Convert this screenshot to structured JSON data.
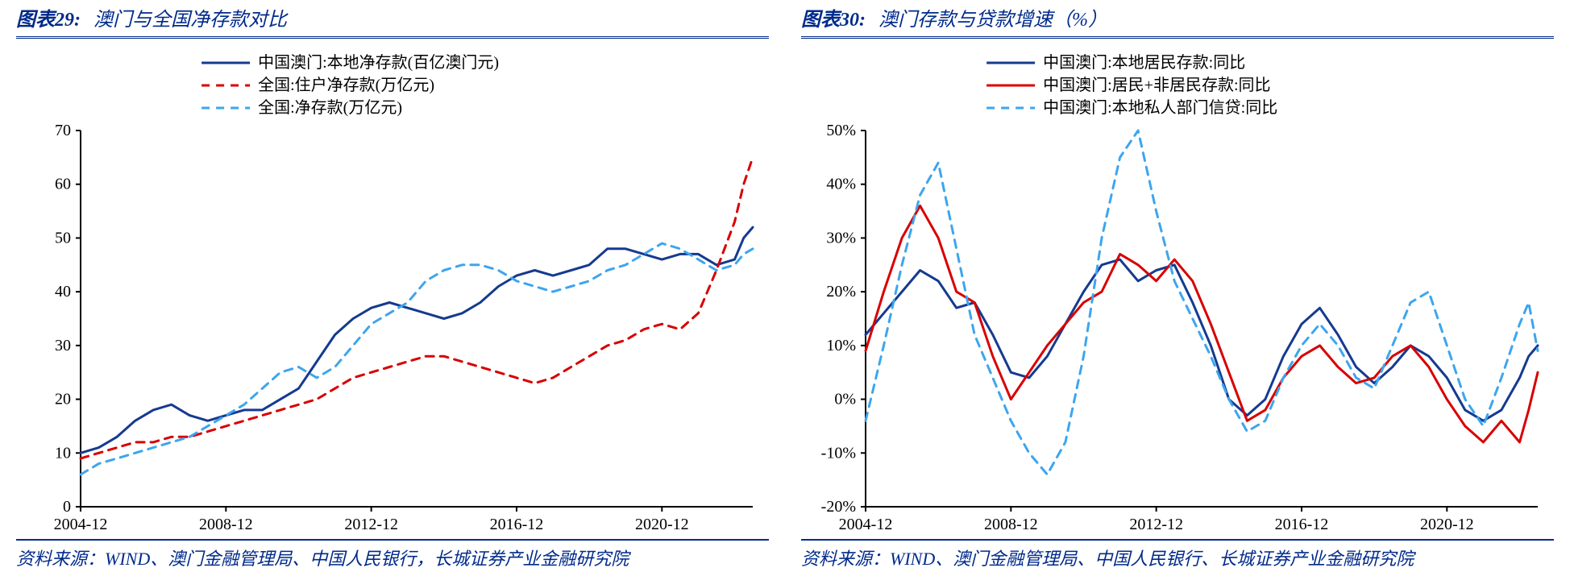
{
  "colors": {
    "title": "#002a8a",
    "axis": "#000000",
    "navy": "#153a8f",
    "red": "#d80000",
    "sky": "#3da5ee",
    "bg": "#ffffff"
  },
  "panel_left": {
    "fig_no": "图表29:",
    "title": "澳门与全国净存款对比",
    "source": "资料来源：WIND、澳门金融管理局、中国人民银行，长城证券产业金融研究院",
    "chart": {
      "type": "line",
      "x_domain": [
        "2004-12",
        "2023-06"
      ],
      "x_ticks": [
        "2004-12",
        "2008-12",
        "2012-12",
        "2016-12",
        "2020-12"
      ],
      "ylim": [
        0,
        70
      ],
      "ytick_step": 10,
      "line_width": 3,
      "legend_pos": "top-center",
      "series": [
        {
          "name": "中国澳门:本地净存款(百亿澳门元)",
          "color": "#153a8f",
          "dash": "solid",
          "values": {
            "2004-12": 10,
            "2005-06": 11,
            "2005-12": 13,
            "2006-06": 16,
            "2006-12": 18,
            "2007-06": 19,
            "2007-12": 17,
            "2008-06": 16,
            "2008-12": 17,
            "2009-06": 18,
            "2009-12": 18,
            "2010-06": 20,
            "2010-12": 22,
            "2011-06": 27,
            "2011-12": 32,
            "2012-06": 35,
            "2012-12": 37,
            "2013-06": 38,
            "2013-12": 37,
            "2014-06": 36,
            "2014-12": 35,
            "2015-06": 36,
            "2015-12": 38,
            "2016-06": 41,
            "2016-12": 43,
            "2017-06": 44,
            "2017-12": 43,
            "2018-06": 44,
            "2018-12": 45,
            "2019-06": 48,
            "2019-12": 48,
            "2020-06": 47,
            "2020-12": 46,
            "2021-06": 47,
            "2021-12": 47,
            "2022-06": 45,
            "2022-12": 46,
            "2023-03": 50,
            "2023-06": 52
          }
        },
        {
          "name": "全国:住户净存款(万亿元)",
          "color": "#d80000",
          "dash": "dash",
          "values": {
            "2004-12": 9,
            "2005-06": 10,
            "2005-12": 11,
            "2006-06": 12,
            "2006-12": 12,
            "2007-06": 13,
            "2007-12": 13,
            "2008-06": 14,
            "2008-12": 15,
            "2009-06": 16,
            "2009-12": 17,
            "2010-06": 18,
            "2010-12": 19,
            "2011-06": 20,
            "2011-12": 22,
            "2012-06": 24,
            "2012-12": 25,
            "2013-06": 26,
            "2013-12": 27,
            "2014-06": 28,
            "2014-12": 28,
            "2015-06": 27,
            "2015-12": 26,
            "2016-06": 25,
            "2016-12": 24,
            "2017-06": 23,
            "2017-12": 24,
            "2018-06": 26,
            "2018-12": 28,
            "2019-06": 30,
            "2019-12": 31,
            "2020-06": 33,
            "2020-12": 34,
            "2021-06": 33,
            "2021-12": 36,
            "2022-06": 44,
            "2022-12": 53,
            "2023-03": 60,
            "2023-06": 65
          }
        },
        {
          "name": "全国:净存款(万亿元)",
          "color": "#3da5ee",
          "dash": "dash",
          "values": {
            "2004-12": 6,
            "2005-06": 8,
            "2005-12": 9,
            "2006-06": 10,
            "2006-12": 11,
            "2007-06": 12,
            "2007-12": 13,
            "2008-06": 15,
            "2008-12": 17,
            "2009-06": 19,
            "2009-12": 22,
            "2010-06": 25,
            "2010-12": 26,
            "2011-06": 24,
            "2011-12": 26,
            "2012-06": 30,
            "2012-12": 34,
            "2013-06": 36,
            "2013-12": 38,
            "2014-06": 42,
            "2014-12": 44,
            "2015-06": 45,
            "2015-12": 45,
            "2016-06": 44,
            "2016-12": 42,
            "2017-06": 41,
            "2017-12": 40,
            "2018-06": 41,
            "2018-12": 42,
            "2019-06": 44,
            "2019-12": 45,
            "2020-06": 47,
            "2020-12": 49,
            "2021-06": 48,
            "2021-12": 46,
            "2022-06": 44,
            "2022-12": 45,
            "2023-03": 47,
            "2023-06": 48
          }
        }
      ]
    }
  },
  "panel_right": {
    "fig_no": "图表30:",
    "title": "澳门存款与贷款增速（%）",
    "source": "资料来源：WIND、澳门金融管理局、中国人民银行、长城证券产业金融研究院",
    "chart": {
      "type": "line",
      "x_domain": [
        "2004-12",
        "2023-06"
      ],
      "x_ticks": [
        "2004-12",
        "2008-12",
        "2012-12",
        "2016-12",
        "2020-12"
      ],
      "ylim": [
        -20,
        50
      ],
      "y_ticks": [
        -20,
        -10,
        0,
        10,
        20,
        30,
        40,
        50
      ],
      "y_tick_fmt": "percent",
      "line_width": 3,
      "legend_pos": "top-center",
      "series": [
        {
          "name": "中国澳门:本地居民存款:同比",
          "color": "#153a8f",
          "dash": "solid",
          "values": {
            "2004-12": 12,
            "2005-06": 16,
            "2005-12": 20,
            "2006-06": 24,
            "2006-12": 22,
            "2007-06": 17,
            "2007-12": 18,
            "2008-06": 12,
            "2008-12": 5,
            "2009-06": 4,
            "2009-12": 8,
            "2010-06": 14,
            "2010-12": 20,
            "2011-06": 25,
            "2011-12": 26,
            "2012-06": 22,
            "2012-12": 24,
            "2013-06": 25,
            "2013-12": 18,
            "2014-06": 10,
            "2014-12": 0,
            "2015-06": -3,
            "2015-12": 0,
            "2016-06": 8,
            "2016-12": 14,
            "2017-06": 17,
            "2017-12": 12,
            "2018-06": 6,
            "2018-12": 3,
            "2019-06": 6,
            "2019-12": 10,
            "2020-06": 8,
            "2020-12": 4,
            "2021-06": -2,
            "2021-12": -4,
            "2022-06": -2,
            "2022-12": 4,
            "2023-03": 8,
            "2023-06": 10
          }
        },
        {
          "name": "中国澳门:居民+非居民存款:同比",
          "color": "#d80000",
          "dash": "solid",
          "values": {
            "2004-12": 9,
            "2005-06": 20,
            "2005-12": 30,
            "2006-06": 36,
            "2006-12": 30,
            "2007-06": 20,
            "2007-12": 18,
            "2008-06": 8,
            "2008-12": 0,
            "2009-06": 5,
            "2009-12": 10,
            "2010-06": 14,
            "2010-12": 18,
            "2011-06": 20,
            "2011-12": 27,
            "2012-06": 25,
            "2012-12": 22,
            "2013-06": 26,
            "2013-12": 22,
            "2014-06": 14,
            "2014-12": 5,
            "2015-06": -4,
            "2015-12": -2,
            "2016-06": 4,
            "2016-12": 8,
            "2017-06": 10,
            "2017-12": 6,
            "2018-06": 3,
            "2018-12": 4,
            "2019-06": 8,
            "2019-12": 10,
            "2020-06": 6,
            "2020-12": 0,
            "2021-06": -5,
            "2021-12": -8,
            "2022-06": -4,
            "2022-12": -8,
            "2023-03": -2,
            "2023-06": 5
          }
        },
        {
          "name": "中国澳门:本地私人部门信贷:同比",
          "color": "#3da5ee",
          "dash": "dash",
          "values": {
            "2004-12": -4,
            "2005-06": 10,
            "2005-12": 25,
            "2006-06": 38,
            "2006-12": 44,
            "2007-06": 28,
            "2007-12": 12,
            "2008-06": 4,
            "2008-12": -4,
            "2009-06": -10,
            "2009-12": -14,
            "2010-06": -8,
            "2010-12": 8,
            "2011-06": 30,
            "2011-12": 45,
            "2012-06": 50,
            "2012-12": 35,
            "2013-06": 22,
            "2013-12": 15,
            "2014-06": 8,
            "2014-12": 0,
            "2015-06": -6,
            "2015-12": -4,
            "2016-06": 4,
            "2016-12": 10,
            "2017-06": 14,
            "2017-12": 10,
            "2018-06": 4,
            "2018-12": 2,
            "2019-06": 10,
            "2019-12": 18,
            "2020-06": 20,
            "2020-12": 10,
            "2021-06": 0,
            "2021-12": -5,
            "2022-06": 4,
            "2022-12": 14,
            "2023-03": 18,
            "2023-06": 9
          }
        }
      ]
    }
  }
}
